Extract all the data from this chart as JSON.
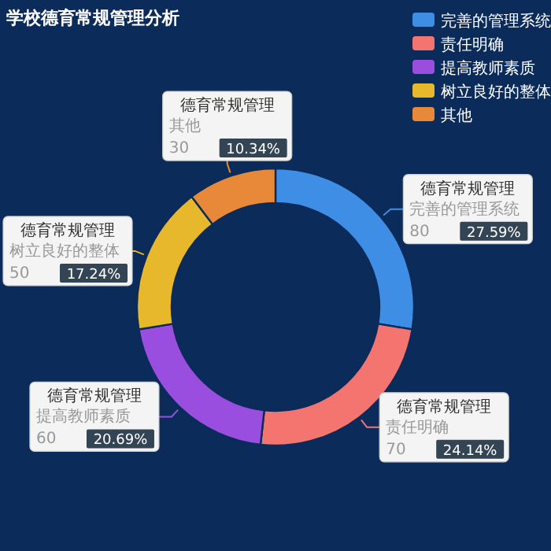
{
  "chart_data": {
    "type": "donut",
    "title": "学校德育常规管理分析",
    "categories": [
      "完善的管理系统",
      "责任明确",
      "提高教师素质",
      "树立良好的整体",
      "其他"
    ],
    "series": [
      {
        "name": "德育常规管理",
        "values": [
          80,
          70,
          60,
          50,
          30
        ]
      }
    ],
    "annotations": [
      "27.59%",
      "24.14%",
      "20.69%",
      "17.24%",
      "10.34%"
    ],
    "colors": [
      "#3f8ee6",
      "#f47470",
      "#9a4ee0",
      "#e8b82c",
      "#e8893a"
    ],
    "legend": "top right",
    "data_labels": true
  }
}
